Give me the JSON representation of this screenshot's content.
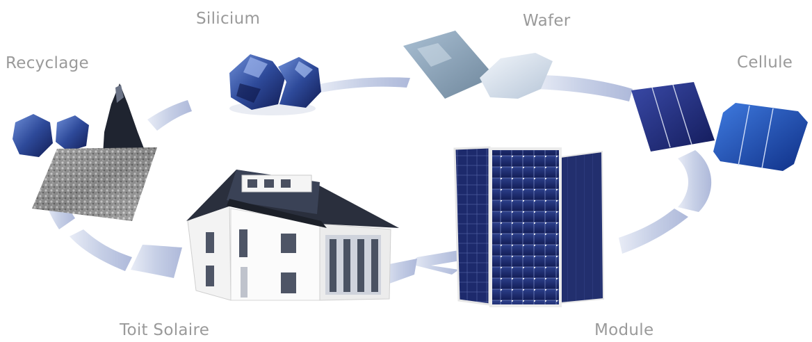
{
  "stages": {
    "silicium": "Silicium",
    "wafer": "Wafer",
    "cellule": "Cellule",
    "module": "Module",
    "toit_solaire": "Toit Solaire",
    "recyclage": "Recyclage"
  },
  "colors": {
    "label": "#9a9a9a",
    "arrow": "#c6cfe6",
    "silicon": "#2e4a9a",
    "cell": "#1e2a78",
    "panel": "#1a2a6e"
  }
}
